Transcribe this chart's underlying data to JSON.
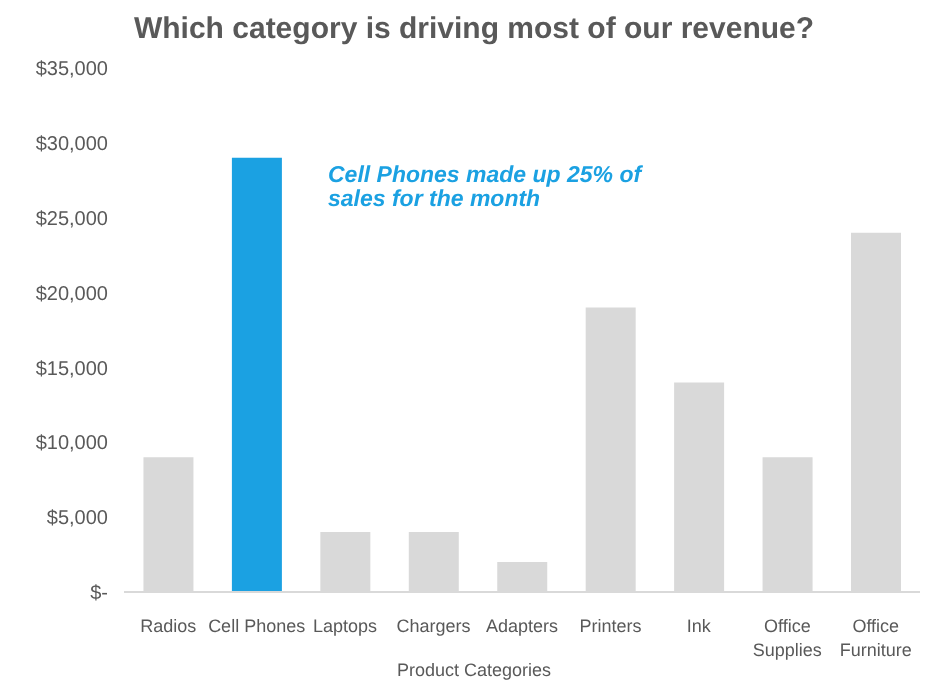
{
  "chart_data": {
    "type": "bar",
    "title": "Which category is driving most of our revenue?",
    "xlabel": "Product Categories",
    "categories": [
      "Radios",
      "Cell Phones",
      "Laptops",
      "Chargers",
      "Adapters",
      "Printers",
      "Ink",
      "Office Supplies",
      "Office Furniture"
    ],
    "values": [
      9000,
      29000,
      4000,
      4000,
      2000,
      19000,
      14000,
      9000,
      24000
    ],
    "colors": [
      "#d9d9d9",
      "#1ba1e2",
      "#d9d9d9",
      "#d9d9d9",
      "#d9d9d9",
      "#d9d9d9",
      "#d9d9d9",
      "#d9d9d9",
      "#d9d9d9"
    ],
    "ylim": [
      0,
      35000
    ],
    "yticks": [
      {
        "value": 0,
        "label": "$-"
      },
      {
        "value": 5000,
        "label": "$5,000"
      },
      {
        "value": 10000,
        "label": "$10,000"
      },
      {
        "value": 15000,
        "label": "$15,000"
      },
      {
        "value": 20000,
        "label": "$20,000"
      },
      {
        "value": 25000,
        "label": "$25,000"
      },
      {
        "value": 30000,
        "label": "$30,000"
      },
      {
        "value": 35000,
        "label": "$35,000"
      }
    ],
    "annotations": [
      "Cell Phones made up 25% of sales for the month"
    ],
    "grid": false,
    "legend": false
  }
}
